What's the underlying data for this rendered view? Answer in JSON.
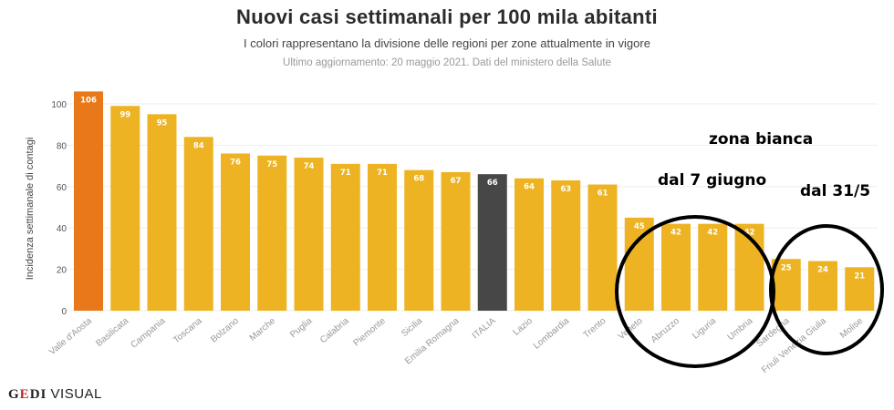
{
  "header": {
    "title": "Nuovi casi settimanali per 100 mila abitanti",
    "subtitle": "I colori rappresentano la divisione delle regioni per zone attualmente in vigore",
    "updated": "Ultimo aggiornamento: 20 maggio 2021. Dati del ministero della Salute"
  },
  "logo": {
    "gedi_g": "G",
    "gedi_e": "E",
    "gedi_di": "DI",
    "visual": "VISUAL"
  },
  "annotations": {
    "zona_bianca": "zona bianca",
    "dal_7_giugno": "dal 7 giugno",
    "dal_31_5": "dal 31/5"
  },
  "colors": {
    "default": "#EDB322",
    "highlight": "#E8781A",
    "italia": "#474747",
    "grid": "#eeeeee",
    "label": "#999999"
  },
  "chart_data": {
    "type": "bar",
    "title": "Nuovi casi settimanali per 100 mila abitanti",
    "xlabel": "",
    "ylabel": "Incidenza settimanale di contagi",
    "ylim": [
      0,
      106
    ],
    "yticks": [
      0,
      20,
      40,
      60,
      80,
      100
    ],
    "grid": true,
    "categories": [
      "Valle d'Aosta",
      "Basilicata",
      "Campania",
      "Toscana",
      "Bolzano",
      "Marche",
      "Puglia",
      "Calabria",
      "Piemonte",
      "Sicilia",
      "Emilia Romagna",
      "ITALIA",
      "Lazio",
      "Lombardia",
      "Trento",
      "Veneto",
      "Abruzzo",
      "Liguria",
      "Umbria",
      "Sardegna",
      "Friuli Venezia Giulia",
      "Molise"
    ],
    "values": [
      106,
      99,
      95,
      84,
      76,
      75,
      74,
      71,
      71,
      68,
      67,
      66,
      64,
      63,
      61,
      45,
      42,
      42,
      42,
      25,
      24,
      21
    ],
    "bar_colors": [
      "highlight",
      "default",
      "default",
      "default",
      "default",
      "default",
      "default",
      "default",
      "default",
      "default",
      "default",
      "italia",
      "default",
      "default",
      "default",
      "default",
      "default",
      "default",
      "default",
      "default",
      "default",
      "default"
    ]
  }
}
